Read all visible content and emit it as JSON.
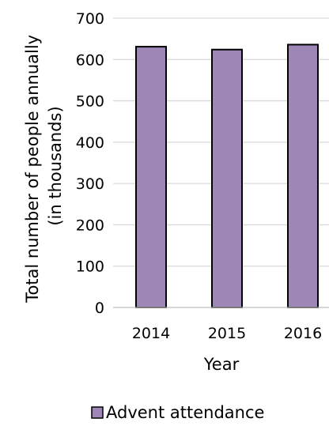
{
  "chart_data": {
    "type": "bar",
    "categories": [
      "2014",
      "2015",
      "2016"
    ],
    "series": [
      {
        "name": "Advent attendance",
        "values": [
          631,
          624,
          636
        ]
      }
    ],
    "title": "",
    "xlabel": "Year",
    "ylabel": "Total number of people annually\n(in thousands)",
    "ylabel_lines": [
      "Total number of people annually",
      "(in thousands)"
    ],
    "ylim": [
      0,
      700
    ],
    "yticks": [
      0,
      100,
      200,
      300,
      400,
      500,
      600,
      700
    ],
    "grid": true,
    "legend_position": "bottom",
    "colors": {
      "bar_fill": "#9e86b6",
      "bar_stroke": "#000000",
      "grid": "#d9d9d9",
      "axis": "#bfbfbf"
    }
  }
}
